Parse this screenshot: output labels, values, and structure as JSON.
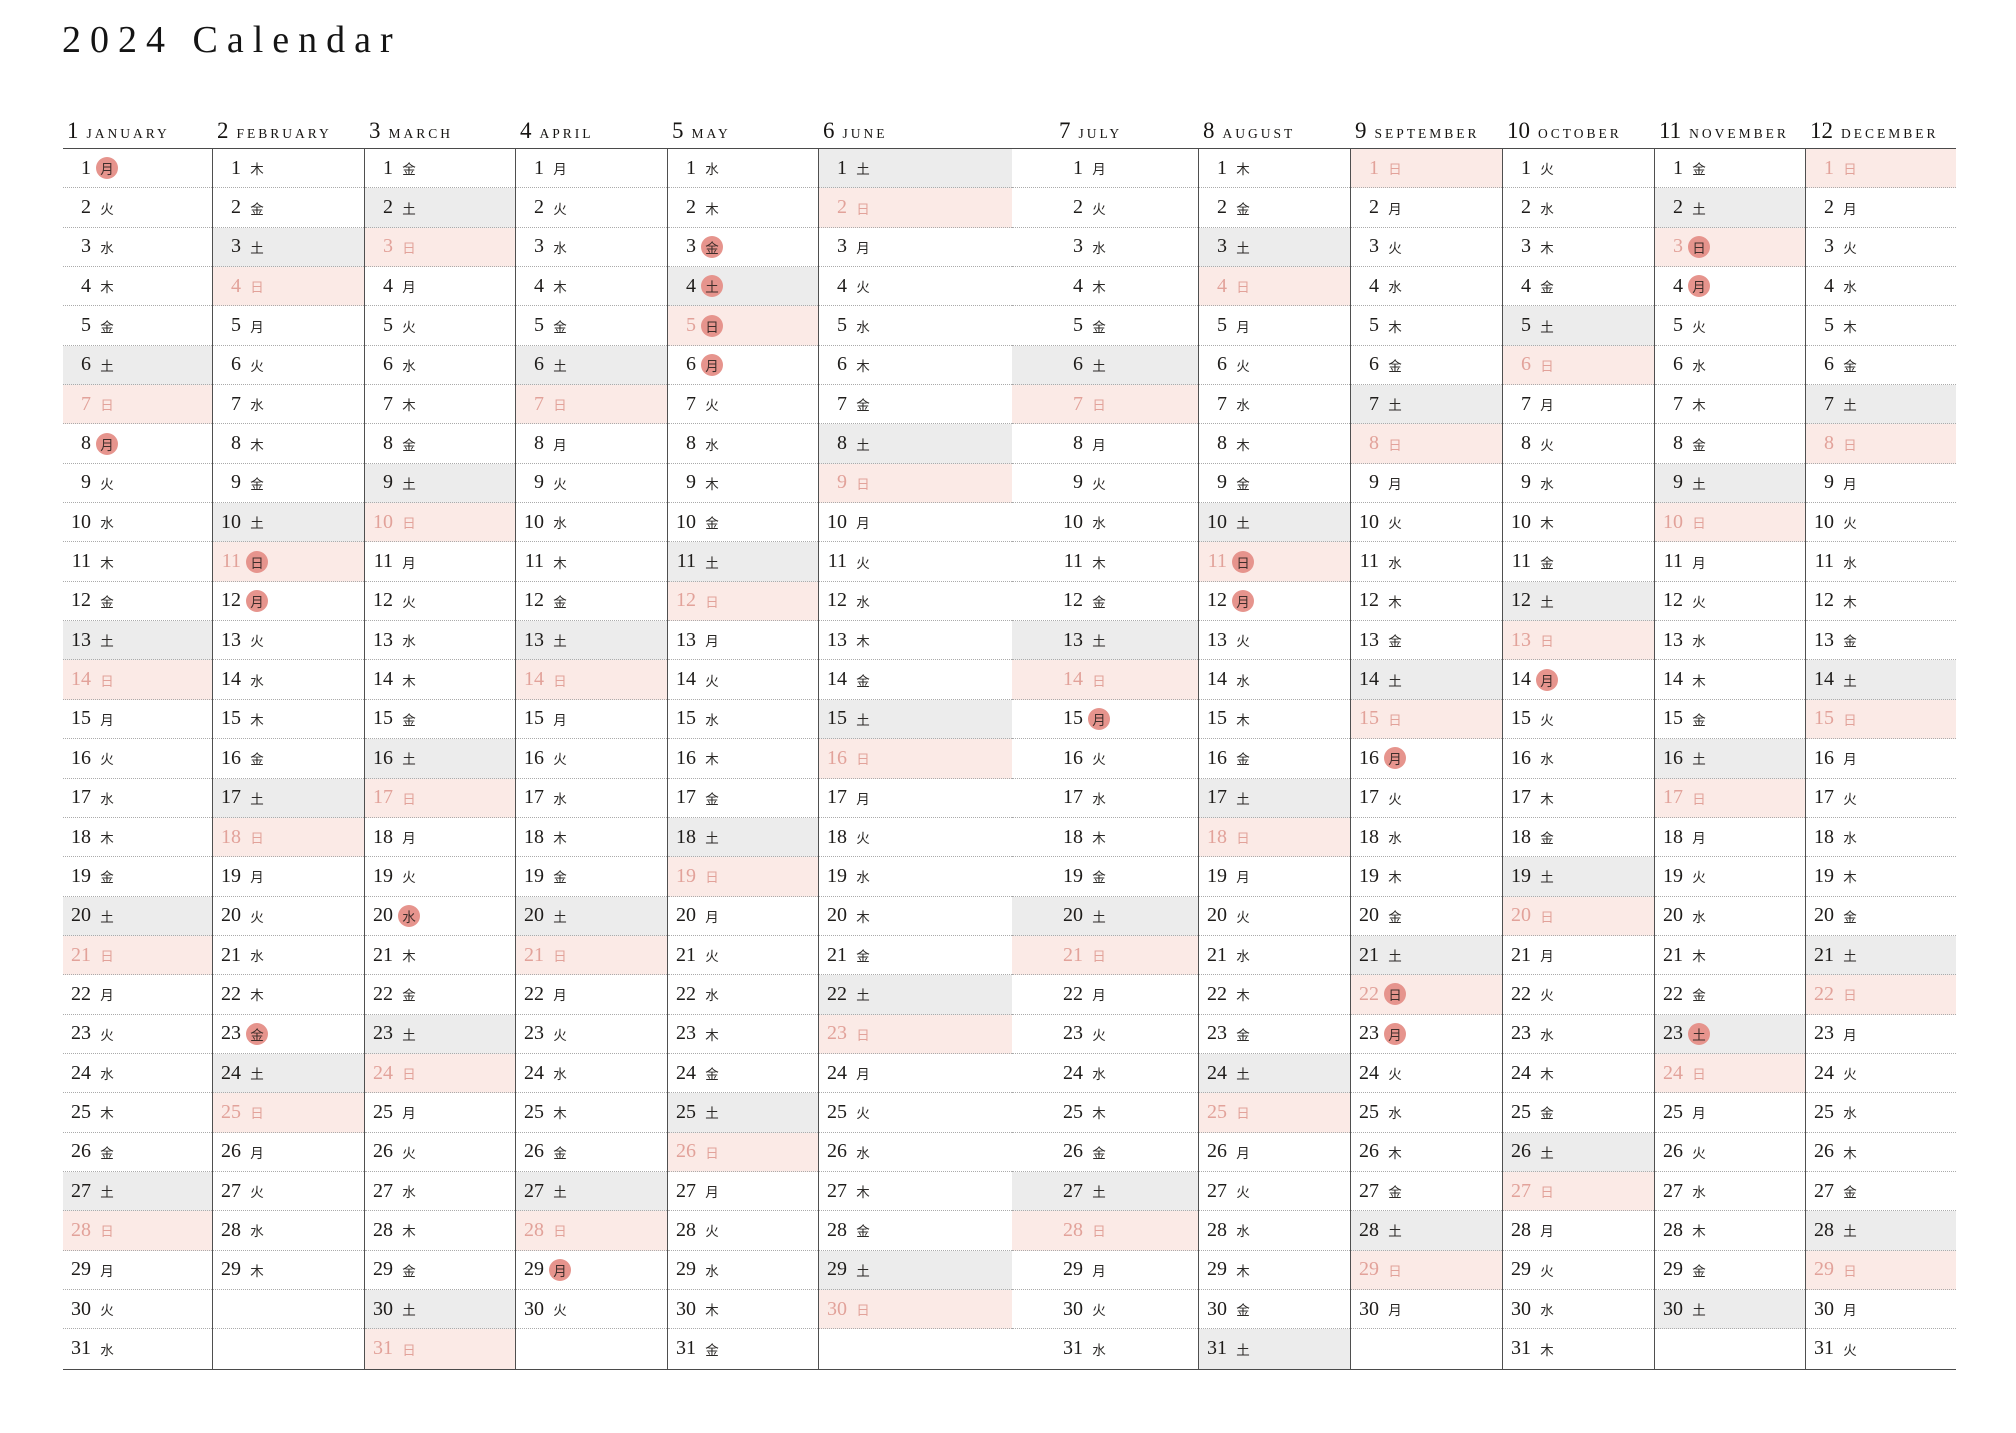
{
  "title": "2024 Calendar",
  "colors": {
    "sunday_bg": "#fbeae6",
    "sunday_text": "#e2a29a",
    "saturday_bg": "#ececec",
    "holiday_circle": "#e6948d",
    "line_dark": "#4a4a4a",
    "dotted_line": "#ababab"
  },
  "months": [
    {
      "num": "1",
      "name": "JANUARY",
      "holidays": [
        1,
        8
      ],
      "wd": [
        "月",
        "火",
        "水",
        "木",
        "金",
        "土",
        "日",
        "月",
        "火",
        "水",
        "木",
        "金",
        "土",
        "日",
        "月",
        "火",
        "水",
        "木",
        "金",
        "土",
        "日",
        "月",
        "火",
        "水",
        "木",
        "金",
        "土",
        "日",
        "月",
        "火",
        "水"
      ]
    },
    {
      "num": "2",
      "name": "FEBRUARY",
      "holidays": [
        11,
        12,
        23
      ],
      "wd": [
        "木",
        "金",
        "土",
        "日",
        "月",
        "火",
        "水",
        "木",
        "金",
        "土",
        "日",
        "月",
        "火",
        "水",
        "木",
        "金",
        "土",
        "日",
        "月",
        "火",
        "水",
        "木",
        "金",
        "土",
        "日",
        "月",
        "火",
        "水",
        "木"
      ]
    },
    {
      "num": "3",
      "name": "MARCH",
      "holidays": [
        20
      ],
      "wd": [
        "金",
        "土",
        "日",
        "月",
        "火",
        "水",
        "木",
        "金",
        "土",
        "日",
        "月",
        "火",
        "水",
        "木",
        "金",
        "土",
        "日",
        "月",
        "火",
        "水",
        "木",
        "金",
        "土",
        "日",
        "月",
        "火",
        "水",
        "木",
        "金",
        "土",
        "日"
      ]
    },
    {
      "num": "4",
      "name": "APRIL",
      "holidays": [
        29
      ],
      "wd": [
        "月",
        "火",
        "水",
        "木",
        "金",
        "土",
        "日",
        "月",
        "火",
        "水",
        "木",
        "金",
        "土",
        "日",
        "月",
        "火",
        "水",
        "木",
        "金",
        "土",
        "日",
        "月",
        "火",
        "水",
        "木",
        "金",
        "土",
        "日",
        "月",
        "火"
      ]
    },
    {
      "num": "5",
      "name": "MAY",
      "holidays": [
        3,
        4,
        5,
        6
      ],
      "wd": [
        "水",
        "木",
        "金",
        "土",
        "日",
        "月",
        "火",
        "水",
        "木",
        "金",
        "土",
        "日",
        "月",
        "火",
        "水",
        "木",
        "金",
        "土",
        "日",
        "月",
        "火",
        "水",
        "木",
        "金",
        "土",
        "日",
        "月",
        "火",
        "水",
        "木",
        "金"
      ]
    },
    {
      "num": "6",
      "name": "JUNE",
      "holidays": [],
      "wd": [
        "土",
        "日",
        "月",
        "火",
        "水",
        "木",
        "金",
        "土",
        "日",
        "月",
        "火",
        "水",
        "木",
        "金",
        "土",
        "日",
        "月",
        "火",
        "水",
        "木",
        "金",
        "土",
        "日",
        "月",
        "火",
        "水",
        "木",
        "金",
        "土",
        "日"
      ]
    },
    {
      "num": "7",
      "name": "JULY",
      "holidays": [
        15
      ],
      "wd": [
        "月",
        "火",
        "水",
        "木",
        "金",
        "土",
        "日",
        "月",
        "火",
        "水",
        "木",
        "金",
        "土",
        "日",
        "月",
        "火",
        "水",
        "木",
        "金",
        "土",
        "日",
        "月",
        "火",
        "水",
        "木",
        "金",
        "土",
        "日",
        "月",
        "火",
        "水"
      ]
    },
    {
      "num": "8",
      "name": "AUGUST",
      "holidays": [
        11,
        12
      ],
      "wd": [
        "木",
        "金",
        "土",
        "日",
        "月",
        "火",
        "水",
        "木",
        "金",
        "土",
        "日",
        "月",
        "火",
        "水",
        "木",
        "金",
        "土",
        "日",
        "月",
        "火",
        "水",
        "木",
        "金",
        "土",
        "日",
        "月",
        "火",
        "水",
        "木",
        "金",
        "土"
      ]
    },
    {
      "num": "9",
      "name": "SEPTEMBER",
      "holidays": [
        16,
        22,
        23
      ],
      "wd": [
        "日",
        "月",
        "火",
        "水",
        "木",
        "金",
        "土",
        "日",
        "月",
        "火",
        "水",
        "木",
        "金",
        "土",
        "日",
        "月",
        "火",
        "水",
        "木",
        "金",
        "土",
        "日",
        "月",
        "火",
        "水",
        "木",
        "金",
        "土",
        "日",
        "月"
      ]
    },
    {
      "num": "10",
      "name": "OCTOBER",
      "holidays": [
        14
      ],
      "wd": [
        "火",
        "水",
        "木",
        "金",
        "土",
        "日",
        "月",
        "火",
        "水",
        "木",
        "金",
        "土",
        "日",
        "月",
        "火",
        "水",
        "木",
        "金",
        "土",
        "日",
        "月",
        "火",
        "水",
        "木",
        "金",
        "土",
        "日",
        "月",
        "火",
        "水",
        "木"
      ]
    },
    {
      "num": "11",
      "name": "NOVEMBER",
      "holidays": [
        3,
        4,
        23
      ],
      "wd": [
        "金",
        "土",
        "日",
        "月",
        "火",
        "水",
        "木",
        "金",
        "土",
        "日",
        "月",
        "火",
        "水",
        "木",
        "金",
        "土",
        "日",
        "月",
        "火",
        "水",
        "木",
        "金",
        "土",
        "日",
        "月",
        "火",
        "水",
        "木",
        "金",
        "土"
      ]
    },
    {
      "num": "12",
      "name": "DECEMBER",
      "holidays": [],
      "wd": [
        "日",
        "月",
        "火",
        "水",
        "木",
        "金",
        "土",
        "日",
        "月",
        "火",
        "水",
        "木",
        "金",
        "土",
        "日",
        "月",
        "火",
        "水",
        "木",
        "金",
        "土",
        "日",
        "月",
        "火",
        "水",
        "木",
        "金",
        "土",
        "日",
        "月",
        "火"
      ]
    }
  ]
}
